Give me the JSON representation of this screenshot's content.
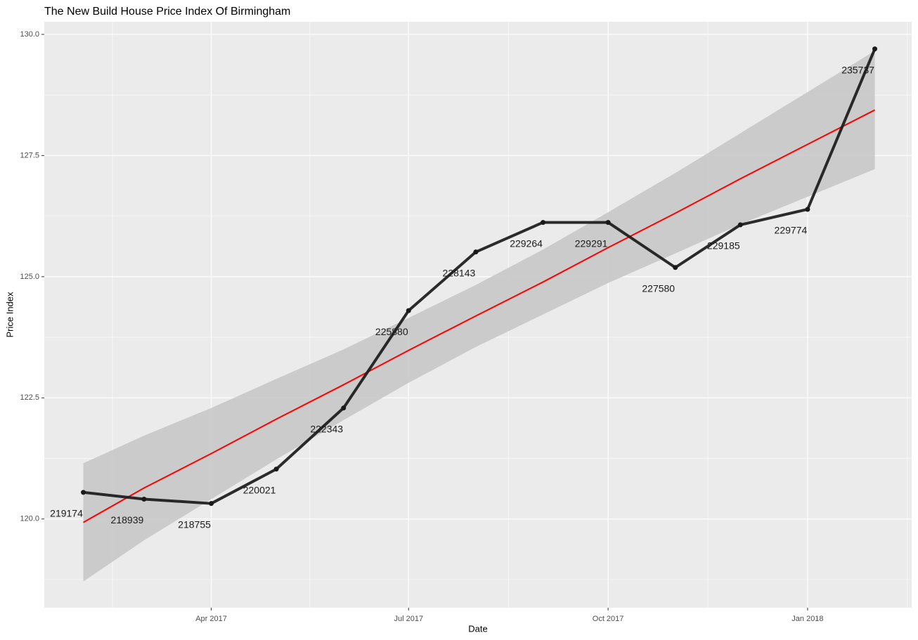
{
  "chart_data": {
    "type": "line",
    "title": "The New Build House Price Index Of Birmingham",
    "x_label": "Date",
    "y_label": "Price Index",
    "x": [
      "2017-02",
      "2017-03",
      "2017-04",
      "2017-05",
      "2017-06",
      "2017-07",
      "2017-08",
      "2017-09",
      "2017-10",
      "2017-11",
      "2017-12",
      "2018-01",
      "2018-02"
    ],
    "series": [
      {
        "name": "Price Index",
        "color": "#1a1a1a",
        "values": [
          120.55,
          120.41,
          120.32,
          121.03,
          122.29,
          124.3,
          125.51,
          126.12,
          126.12,
          125.19,
          126.07,
          126.39,
          129.7
        ],
        "point_labels": [
          219174,
          218939,
          218755,
          220021,
          222343,
          225880,
          228143,
          229264,
          229291,
          227580,
          229185,
          229774,
          235737
        ]
      }
    ],
    "trend": {
      "color": "#ff0000",
      "band_color": "#c8c8c8",
      "values": [
        119.93,
        120.64,
        121.35,
        122.06,
        122.77,
        123.48,
        124.19,
        124.89,
        125.6,
        126.31,
        127.02,
        127.73,
        128.44
      ],
      "lower": [
        118.71,
        119.56,
        120.41,
        121.23,
        122.04,
        122.81,
        123.55,
        124.22,
        124.87,
        125.48,
        126.08,
        126.65,
        127.22
      ],
      "upper": [
        121.15,
        121.72,
        122.29,
        122.89,
        123.5,
        124.15,
        124.83,
        125.56,
        126.33,
        127.14,
        127.96,
        128.81,
        129.66
      ]
    },
    "xlim": [
      "2017-01-14",
      "2018-02-18"
    ],
    "xticks": [
      {
        "value": "2017-04",
        "label": "Apr 2017"
      },
      {
        "value": "2017-07",
        "label": "Jul 2017"
      },
      {
        "value": "2017-10",
        "label": "Oct 2017"
      },
      {
        "value": "2018-01",
        "label": "Jan 2018"
      }
    ],
    "ylim": [
      118.17,
      130.26
    ],
    "yticks": [
      {
        "value": 120,
        "label": "120.0"
      },
      {
        "value": 122.5,
        "label": "122.5"
      },
      {
        "value": 125,
        "label": "125.0"
      },
      {
        "value": 127.5,
        "label": "127.5"
      },
      {
        "value": 130,
        "label": "130.0"
      }
    ],
    "grid": true
  }
}
